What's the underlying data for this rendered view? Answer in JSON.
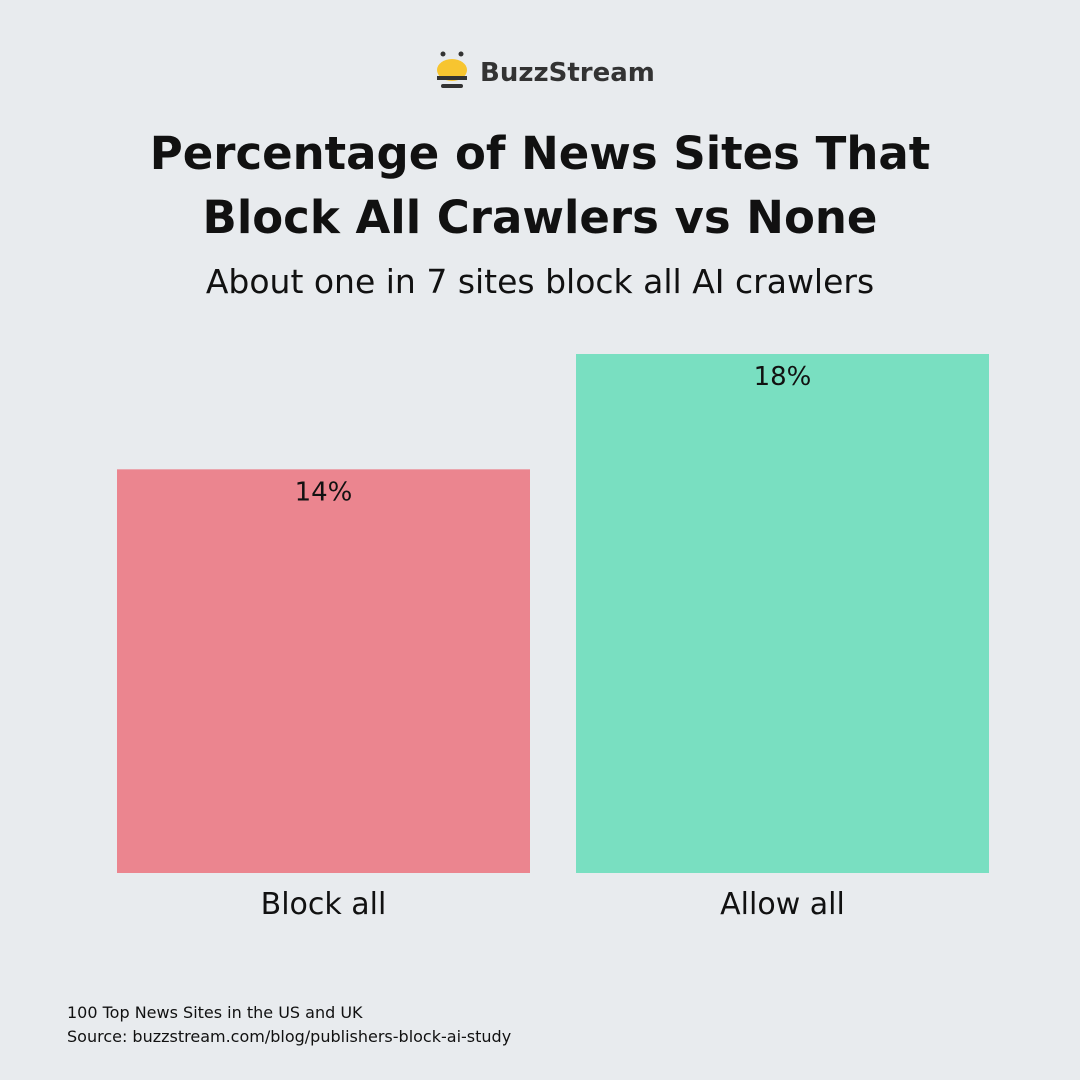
{
  "brand": "BuzzStream",
  "chart_data": {
    "type": "bar",
    "title": "Percentage of News Sites That Block All Crawlers vs None",
    "subtitle": "About one in 7 sites block all AI crawlers",
    "categories": [
      "Block all",
      "Allow all"
    ],
    "values": [
      14,
      18
    ],
    "value_labels": [
      "14%",
      "18%"
    ],
    "colors": [
      "#eb858f",
      "#79dfc1"
    ],
    "note": "100 Top News Sites in the US and UK",
    "source": "Source: buzzstream.com/blog/publishers-block-ai-study"
  }
}
